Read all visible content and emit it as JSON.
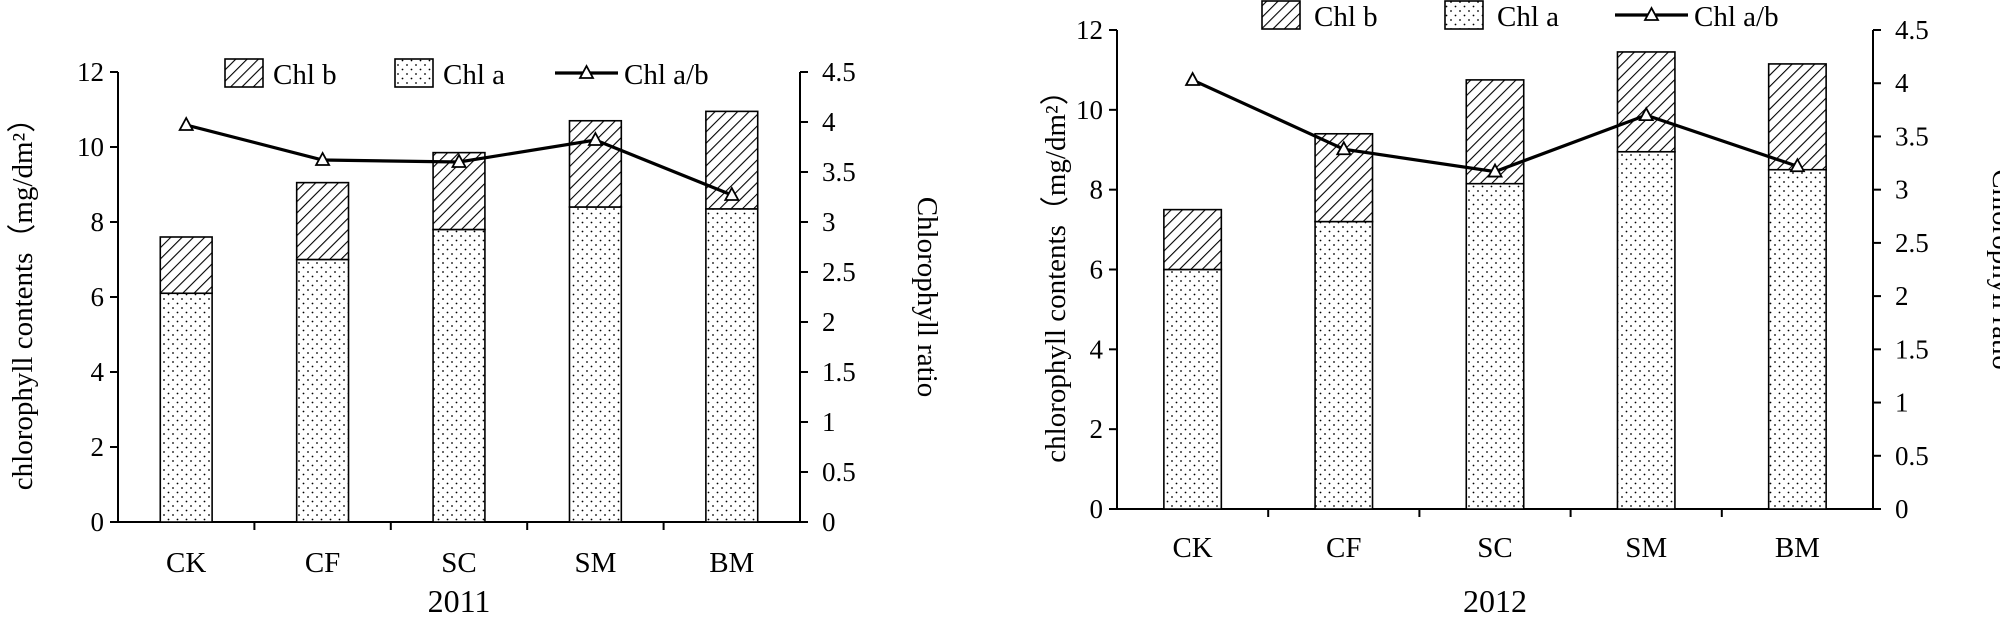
{
  "chart_data": [
    {
      "type": "bar",
      "stacked": true,
      "categories": [
        "CK",
        "CF",
        "SC",
        "SM",
        "BM"
      ],
      "xlabel": "2011",
      "ylabel": "chlorophyll  contents（mg/dm²）",
      "y2label": "Chlorophyll  ratio",
      "ylim": [
        0,
        12
      ],
      "yticks": [
        "0",
        "2",
        "4",
        "6",
        "8",
        "10",
        "12"
      ],
      "y2lim": [
        0,
        4.5
      ],
      "y2ticks": [
        "0",
        "0.5",
        "1",
        "1.5",
        "2",
        "2.5",
        "3",
        "3.5",
        "4",
        "4.5"
      ],
      "legend_position": "top",
      "series": [
        {
          "name": "Chl a",
          "kind": "bar",
          "values": [
            6.1,
            7.0,
            7.8,
            8.4,
            8.35
          ]
        },
        {
          "name": "Chl b",
          "kind": "bar",
          "values": [
            1.5,
            2.05,
            2.05,
            2.3,
            2.6
          ]
        },
        {
          "name": "Chl a/b",
          "kind": "line",
          "axis": "right",
          "values": [
            3.97,
            3.62,
            3.6,
            3.82,
            3.27
          ]
        }
      ]
    },
    {
      "type": "bar",
      "stacked": true,
      "categories": [
        "CK",
        "CF",
        "SC",
        "SM",
        "BM"
      ],
      "xlabel": "2012",
      "ylabel": "chlorophyll  contents（mg/dm²）",
      "y2label": "Chlorophyll  ratio",
      "ylim": [
        0,
        12
      ],
      "yticks": [
        "0",
        "2",
        "4",
        "6",
        "8",
        "10",
        "12"
      ],
      "y2lim": [
        0,
        4.5
      ],
      "y2ticks": [
        "0",
        "0.5",
        "1",
        "1.5",
        "2",
        "2.5",
        "3",
        "3.5",
        "4",
        "4.5"
      ],
      "legend_position": "top",
      "series": [
        {
          "name": "Chl a",
          "kind": "bar",
          "values": [
            6.0,
            7.2,
            8.15,
            8.95,
            8.5
          ]
        },
        {
          "name": "Chl b",
          "kind": "bar",
          "values": [
            1.5,
            2.2,
            2.6,
            2.5,
            2.65
          ]
        },
        {
          "name": "Chl a/b",
          "kind": "line",
          "axis": "right",
          "values": [
            4.03,
            3.38,
            3.17,
            3.7,
            3.22
          ]
        }
      ]
    }
  ]
}
